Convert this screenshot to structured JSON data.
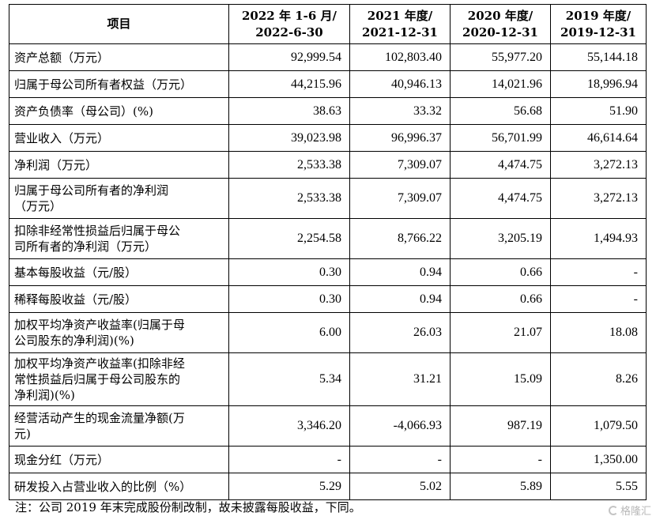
{
  "header": {
    "item": "项目",
    "c1": [
      "2022 年 1-6 月/",
      "2022-6-30"
    ],
    "c2": [
      "2021 年度/",
      "2021-12-31"
    ],
    "c3": [
      "2020 年度/",
      "2020-12-31"
    ],
    "c4": [
      "2019 年度/",
      "2019-12-31"
    ]
  },
  "rows": [
    {
      "label": [
        "资产总额（万元）"
      ],
      "values": [
        "92,999.54",
        "102,803.40",
        "55,977.20",
        "55,144.18"
      ]
    },
    {
      "label": [
        "归属于母公司所有者权益（万元）"
      ],
      "values": [
        "44,215.96",
        "40,946.13",
        "14,021.96",
        "18,996.94"
      ]
    },
    {
      "label": [
        "资产负债率（母公司）(%)"
      ],
      "values": [
        "38.63",
        "33.32",
        "56.68",
        "51.90"
      ]
    },
    {
      "label": [
        "营业收入（万元）"
      ],
      "values": [
        "39,023.98",
        "96,996.37",
        "56,701.99",
        "46,614.64"
      ]
    },
    {
      "label": [
        "净利润（万元）"
      ],
      "values": [
        "2,533.38",
        "7,309.07",
        "4,474.75",
        "3,272.13"
      ]
    },
    {
      "label": [
        "归属于母公司所有者的净利润",
        "（万元）"
      ],
      "values": [
        "2,533.38",
        "7,309.07",
        "4,474.75",
        "3,272.13"
      ]
    },
    {
      "label": [
        "扣除非经常性损益后归属于母公",
        "司所有者的净利润（万元）"
      ],
      "values": [
        "2,254.58",
        "8,766.22",
        "3,205.19",
        "1,494.93"
      ]
    },
    {
      "label": [
        "基本每股收益（元/股）"
      ],
      "values": [
        "0.30",
        "0.94",
        "0.66",
        "-"
      ]
    },
    {
      "label": [
        "稀释每股收益（元/股）"
      ],
      "values": [
        "0.30",
        "0.94",
        "0.66",
        "-"
      ]
    },
    {
      "label": [
        "加权平均净资产收益率(归属于母",
        "公司股东的净利润)(%)"
      ],
      "values": [
        "6.00",
        "26.03",
        "21.07",
        "18.08"
      ]
    },
    {
      "label": [
        "加权平均净资产收益率(扣除非经",
        "常性损益后归属于母公司股东的",
        "净利润)(%)"
      ],
      "values": [
        "5.34",
        "31.21",
        "15.09",
        "8.26"
      ]
    },
    {
      "label": [
        "经营活动产生的现金流量净额(万",
        "元)"
      ],
      "values": [
        "3,346.20",
        "-4,066.93",
        "987.19",
        "1,079.50"
      ]
    },
    {
      "label": [
        "现金分红（万元）"
      ],
      "values": [
        "-",
        "-",
        "-",
        "1,350.00"
      ]
    },
    {
      "label": [
        "研发投入占营业收入的比例（%）"
      ],
      "values": [
        "5.29",
        "5.02",
        "5.89",
        "5.55"
      ]
    }
  ],
  "note": "注：公司 2019 年末完成股份制改制，故未披露每股收益，下同。",
  "watermark": "格隆汇"
}
